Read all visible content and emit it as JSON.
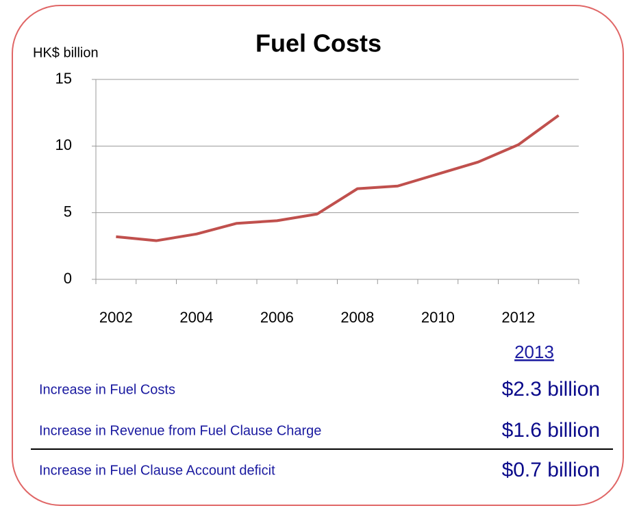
{
  "chart_data": {
    "type": "line",
    "title": "Fuel Costs",
    "y_label": "HK$ billion",
    "categories": [
      "2002",
      null,
      "2004",
      null,
      "2006",
      null,
      "2008",
      null,
      "2010",
      null,
      "2012",
      null
    ],
    "series": [
      {
        "name": "Fuel Costs",
        "color": "#c0504d",
        "values": [
          3.2,
          2.9,
          3.4,
          4.2,
          4.4,
          4.9,
          6.8,
          7.0,
          7.9,
          8.8,
          10.1,
          12.3
        ]
      }
    ],
    "ylim": [
      0,
      15
    ],
    "yticks": [
      0,
      5,
      10,
      15
    ],
    "grid": true
  },
  "table": {
    "header": "2013",
    "rows": [
      [
        "Increase in Fuel Costs",
        "$2.3 billion"
      ],
      [
        "Increase in Revenue from Fuel Clause Charge",
        "$1.6 billion"
      ],
      [
        "Increase in Fuel Clause Account deficit",
        "$0.7 billion"
      ]
    ]
  }
}
